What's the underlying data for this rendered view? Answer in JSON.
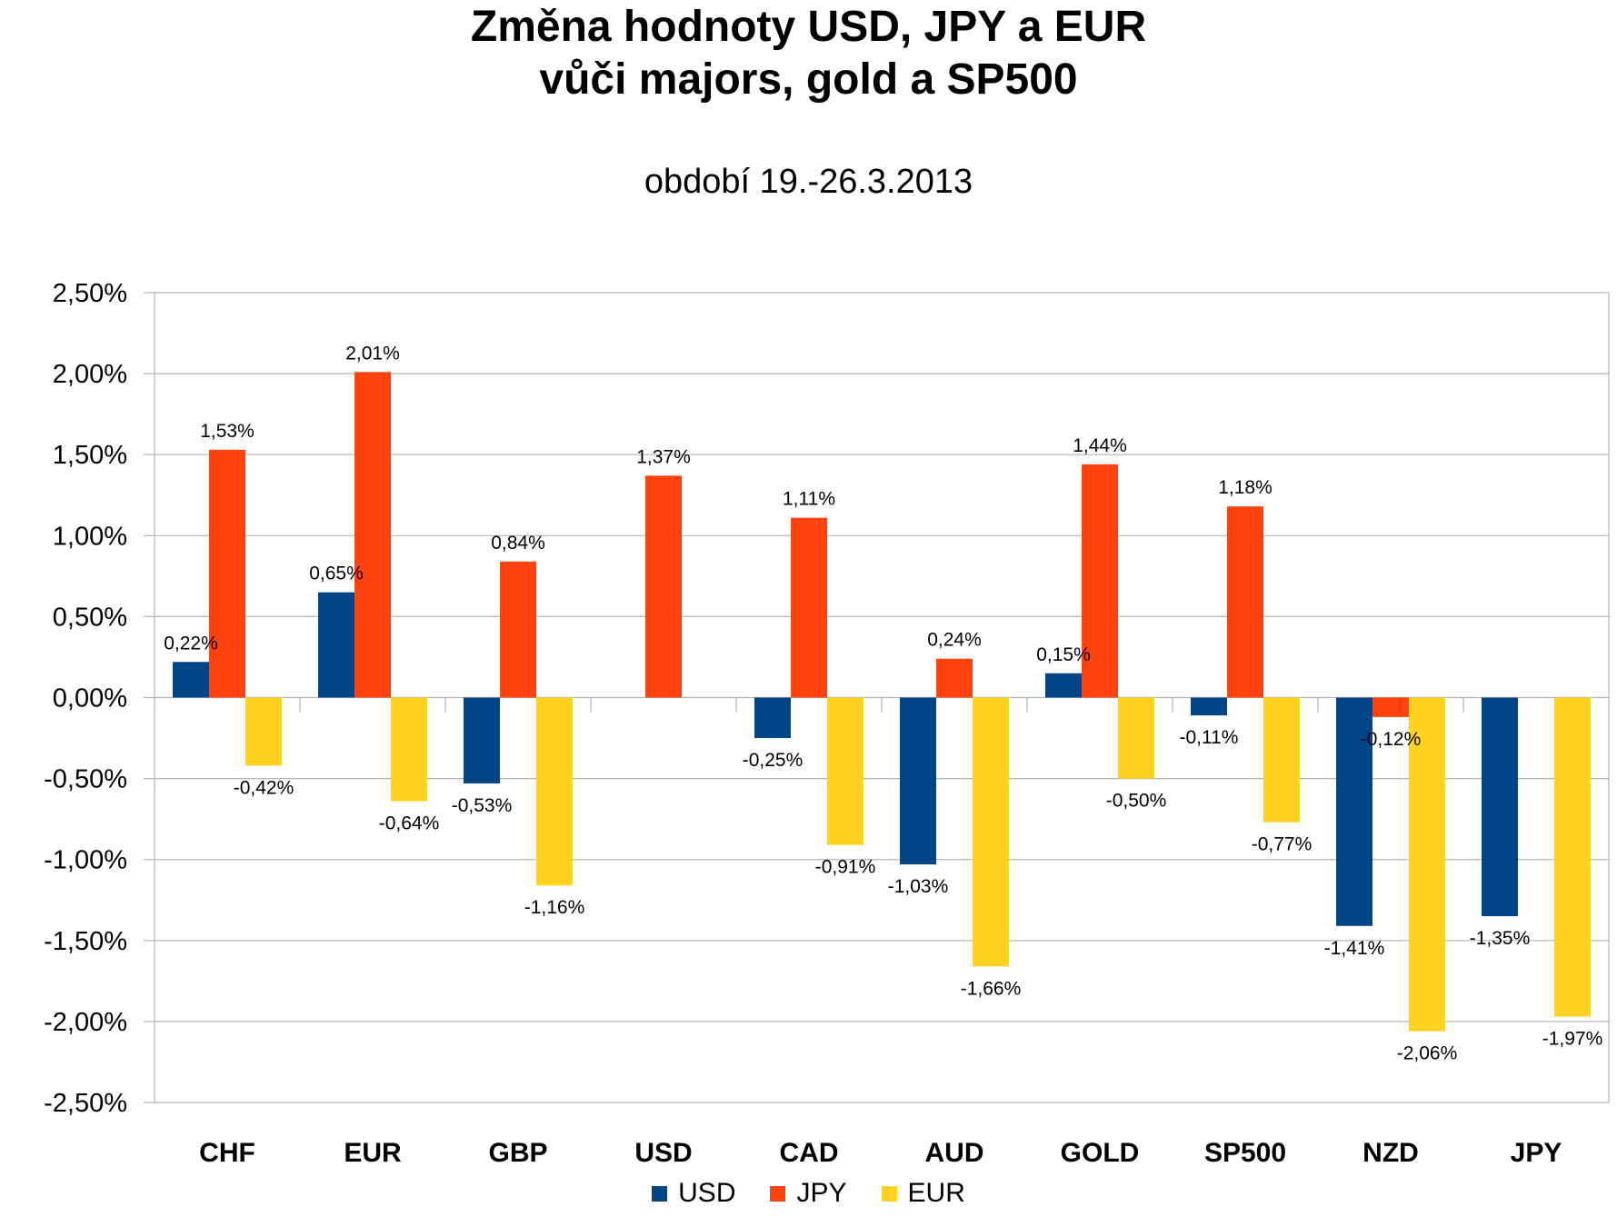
{
  "chart_data": {
    "type": "bar",
    "title": [
      "Změna hodnoty USD, JPY a EUR",
      "vůči majors, gold a SP500"
    ],
    "subtitle": "období 19.-26.3.2013",
    "categories": [
      "CHF",
      "EUR",
      "GBP",
      "USD",
      "CAD",
      "AUD",
      "GOLD",
      "SP500",
      "NZD",
      "JPY"
    ],
    "series": [
      {
        "name": "USD",
        "color": "#004586",
        "values": [
          0.22,
          0.65,
          -0.53,
          null,
          -0.25,
          -1.03,
          0.15,
          -0.11,
          -1.41,
          -1.35
        ],
        "labels": [
          "0,22%",
          "0,65%",
          "-0,53%",
          "",
          "-0,25%",
          "-1,03%",
          "0,15%",
          "-0,11%",
          "-1,41%",
          "-1,35%"
        ]
      },
      {
        "name": "JPY",
        "color": "#FF420E",
        "values": [
          1.53,
          2.01,
          0.84,
          1.37,
          1.11,
          0.24,
          1.44,
          1.18,
          -0.12,
          null
        ],
        "labels": [
          "1,53%",
          "2,01%",
          "0,84%",
          "1,37%",
          "1,11%",
          "0,24%",
          "1,44%",
          "1,18%",
          "-0,12%",
          ""
        ]
      },
      {
        "name": "EUR",
        "color": "#FFD320",
        "values": [
          -0.42,
          -0.64,
          -1.16,
          null,
          -0.91,
          -1.66,
          -0.5,
          -0.77,
          -2.06,
          -1.97
        ],
        "labels": [
          "-0,42%",
          "-0,64%",
          "-1,16%",
          "",
          "-0,91%",
          "-1,66%",
          "-0,50%",
          "-0,77%",
          "-2,06%",
          "-1,97%"
        ]
      }
    ],
    "ylim": [
      -2.5,
      2.5
    ],
    "yticks": [
      2.5,
      2.0,
      1.5,
      1.0,
      0.5,
      0.0,
      -0.5,
      -1.0,
      -1.5,
      -2.0,
      -2.5
    ],
    "ytick_labels": [
      "2,50%",
      "2,00%",
      "1,50%",
      "1,00%",
      "0,50%",
      "0,00%",
      "-0,50%",
      "-1,00%",
      "-1,50%",
      "-2,00%",
      "-2,50%"
    ],
    "grid": true,
    "legend": "bottom"
  }
}
